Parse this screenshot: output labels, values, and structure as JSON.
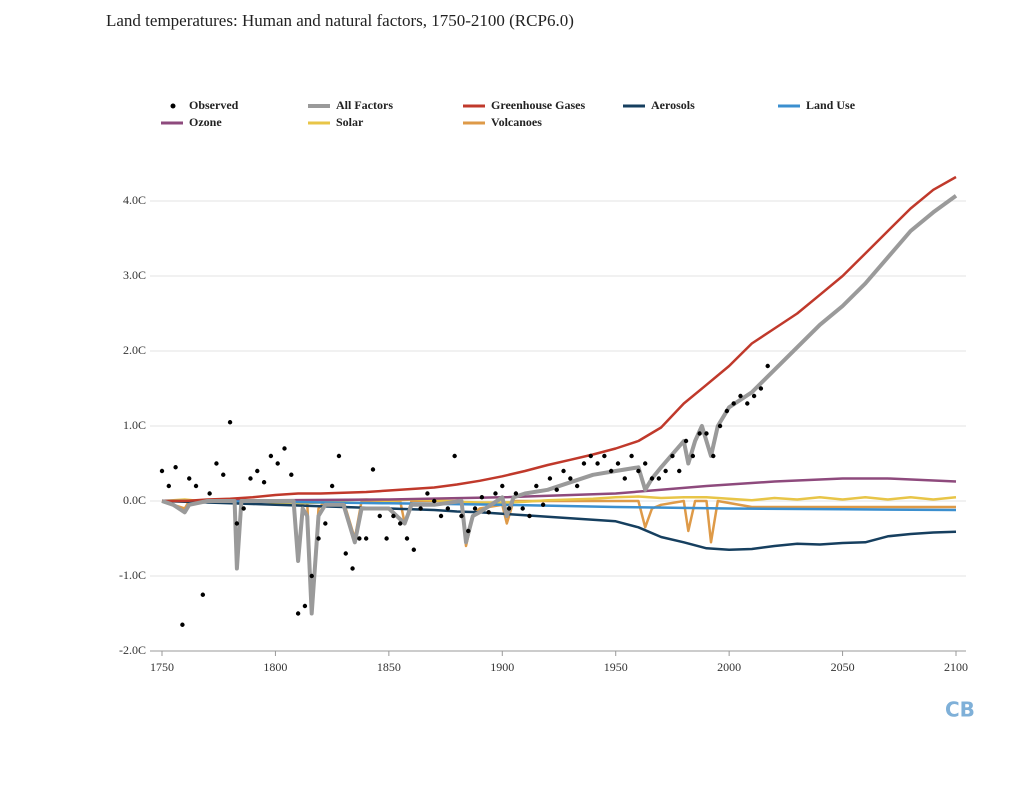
{
  "chart_data": {
    "type": "line",
    "title": "Land temperatures: Human and natural factors, 1750-2100 (RCP6.0)",
    "logo": "CB",
    "xlim": [
      1750,
      2100
    ],
    "xticks": [
      1750,
      1800,
      1850,
      1900,
      1950,
      2000,
      2050,
      2100
    ],
    "ylim": [
      -2,
      4.5
    ],
    "yticks": [
      {
        "value": -2,
        "label": "-2.0C"
      },
      {
        "value": -1,
        "label": "-1.0C"
      },
      {
        "value": 0,
        "label": "0.0C"
      },
      {
        "value": 1,
        "label": "1.0C"
      },
      {
        "value": 2,
        "label": "2.0C"
      },
      {
        "value": 3,
        "label": "3.0C"
      },
      {
        "value": 4,
        "label": "4.0C"
      }
    ],
    "grid": true,
    "series": [
      {
        "name": "Observed",
        "type": "scatter",
        "color": "#000000",
        "x": [
          1750,
          1753,
          1756,
          1759,
          1762,
          1765,
          1768,
          1771,
          1774,
          1777,
          1780,
          1783,
          1786,
          1789,
          1792,
          1795,
          1798,
          1801,
          1804,
          1807,
          1810,
          1813,
          1816,
          1819,
          1822,
          1825,
          1828,
          1831,
          1834,
          1837,
          1840,
          1843,
          1846,
          1849,
          1852,
          1855,
          1858,
          1861,
          1864,
          1867,
          1870,
          1873,
          1876,
          1879,
          1882,
          1885,
          1888,
          1891,
          1894,
          1897,
          1900,
          1903,
          1906,
          1909,
          1912,
          1915,
          1918,
          1921,
          1924,
          1927,
          1930,
          1933,
          1936,
          1939,
          1942,
          1945,
          1948,
          1951,
          1954,
          1957,
          1960,
          1963,
          1966,
          1969,
          1972,
          1975,
          1978,
          1981,
          1984,
          1987,
          1990,
          1993,
          1996,
          1999,
          2002,
          2005,
          2008,
          2011,
          2014,
          2017
        ],
        "values": [
          0.4,
          0.2,
          0.45,
          -1.65,
          0.3,
          0.2,
          -1.25,
          0.1,
          0.5,
          0.35,
          1.05,
          -0.3,
          -0.1,
          0.3,
          0.4,
          0.25,
          0.6,
          0.5,
          0.7,
          0.35,
          -1.5,
          -1.4,
          -1.0,
          -0.5,
          -0.3,
          0.2,
          0.6,
          -0.7,
          -0.9,
          -0.5,
          -0.5,
          0.42,
          -0.2,
          -0.5,
          -0.2,
          -0.3,
          -0.5,
          -0.65,
          -0.1,
          0.1,
          0.0,
          -0.2,
          -0.1,
          0.6,
          -0.2,
          -0.4,
          -0.1,
          0.05,
          -0.15,
          0.1,
          0.2,
          -0.1,
          0.1,
          -0.1,
          -0.2,
          0.2,
          -0.05,
          0.3,
          0.15,
          0.4,
          0.3,
          0.2,
          0.5,
          0.6,
          0.5,
          0.6,
          0.4,
          0.5,
          0.3,
          0.6,
          0.4,
          0.5,
          0.3,
          0.3,
          0.4,
          0.6,
          0.4,
          0.8,
          0.6,
          0.9,
          0.9,
          0.6,
          1.0,
          1.2,
          1.3,
          1.4,
          1.3,
          1.4,
          1.5,
          1.8
        ]
      },
      {
        "name": "All Factors",
        "color": "#9a9a9a",
        "x": [
          1750,
          1755,
          1760,
          1762,
          1770,
          1782,
          1783,
          1785,
          1800,
          1808,
          1810,
          1812,
          1814,
          1816,
          1819,
          1822,
          1830,
          1835,
          1838,
          1850,
          1857,
          1860,
          1870,
          1882,
          1884,
          1887,
          1890,
          1900,
          1902,
          1905,
          1910,
          1920,
          1930,
          1940,
          1950,
          1960,
          1963,
          1966,
          1970,
          1980,
          1982,
          1985,
          1988,
          1992,
          1995,
          2000,
          2010,
          2020,
          2030,
          2040,
          2050,
          2060,
          2070,
          2080,
          2090,
          2100
        ],
        "values": [
          0,
          -0.05,
          -0.15,
          -0.05,
          0,
          0,
          -0.9,
          0,
          0,
          0,
          -0.8,
          -0.1,
          -0.2,
          -1.5,
          -0.2,
          -0.05,
          -0.05,
          -0.55,
          -0.1,
          -0.1,
          -0.3,
          -0.05,
          -0.05,
          0,
          -0.55,
          -0.2,
          -0.15,
          0.05,
          -0.2,
          0.05,
          0.1,
          0.15,
          0.25,
          0.35,
          0.4,
          0.45,
          0.15,
          0.3,
          0.45,
          0.8,
          0.5,
          0.8,
          1.0,
          0.6,
          1.0,
          1.25,
          1.45,
          1.75,
          2.05,
          2.35,
          2.6,
          2.9,
          3.25,
          3.6,
          3.85,
          4.07
        ]
      },
      {
        "name": "Greenhouse Gases",
        "color": "#c0392b",
        "x": [
          1750,
          1760,
          1770,
          1780,
          1790,
          1800,
          1810,
          1820,
          1830,
          1840,
          1850,
          1860,
          1870,
          1880,
          1890,
          1900,
          1910,
          1920,
          1930,
          1940,
          1950,
          1960,
          1970,
          1980,
          1990,
          2000,
          2010,
          2020,
          2030,
          2040,
          2050,
          2060,
          2070,
          2080,
          2090,
          2100
        ],
        "values": [
          0,
          0,
          0.02,
          0.03,
          0.05,
          0.08,
          0.1,
          0.1,
          0.11,
          0.12,
          0.14,
          0.16,
          0.18,
          0.22,
          0.27,
          0.33,
          0.4,
          0.48,
          0.55,
          0.62,
          0.7,
          0.8,
          0.98,
          1.3,
          1.55,
          1.8,
          2.1,
          2.3,
          2.5,
          2.75,
          3.0,
          3.3,
          3.6,
          3.9,
          4.15,
          4.32
        ]
      },
      {
        "name": "Aerosols",
        "color": "#163f5f",
        "x": [
          1750,
          1760,
          1770,
          1780,
          1790,
          1800,
          1810,
          1820,
          1830,
          1840,
          1850,
          1860,
          1870,
          1880,
          1890,
          1900,
          1910,
          1920,
          1930,
          1940,
          1950,
          1960,
          1970,
          1980,
          1990,
          2000,
          2010,
          2020,
          2030,
          2040,
          2050,
          2060,
          2070,
          2080,
          2090,
          2100
        ],
        "values": [
          0,
          -0.01,
          -0.02,
          -0.03,
          -0.04,
          -0.05,
          -0.06,
          -0.07,
          -0.08,
          -0.09,
          -0.1,
          -0.11,
          -0.12,
          -0.14,
          -0.15,
          -0.17,
          -0.19,
          -0.21,
          -0.23,
          -0.25,
          -0.27,
          -0.35,
          -0.48,
          -0.55,
          -0.63,
          -0.65,
          -0.64,
          -0.6,
          -0.57,
          -0.58,
          -0.56,
          -0.55,
          -0.47,
          -0.44,
          -0.42,
          -0.41
        ]
      },
      {
        "name": "Land Use",
        "color": "#3b8fcf",
        "x": [
          1750,
          1800,
          1850,
          1900,
          1950,
          2000,
          2050,
          2100
        ],
        "values": [
          0,
          -0.01,
          -0.03,
          -0.05,
          -0.08,
          -0.1,
          -0.11,
          -0.12
        ]
      },
      {
        "name": "Ozone",
        "color": "#8e4a7d",
        "x": [
          1750,
          1800,
          1850,
          1900,
          1950,
          1970,
          1990,
          2000,
          2020,
          2050,
          2070,
          2100
        ],
        "values": [
          0,
          0.01,
          0.02,
          0.05,
          0.1,
          0.15,
          0.2,
          0.22,
          0.26,
          0.3,
          0.3,
          0.26
        ]
      },
      {
        "name": "Solar",
        "color": "#e8c547",
        "x": [
          1750,
          1760,
          1770,
          1780,
          1790,
          1800,
          1810,
          1820,
          1830,
          1840,
          1850,
          1860,
          1870,
          1880,
          1890,
          1900,
          1910,
          1920,
          1930,
          1940,
          1950,
          1960,
          1970,
          1980,
          1990,
          2000,
          2010,
          2020,
          2030,
          2040,
          2050,
          2060,
          2070,
          2080,
          2090,
          2100
        ],
        "values": [
          0,
          0.02,
          -0.01,
          0.03,
          0.0,
          -0.02,
          -0.03,
          -0.02,
          0.01,
          0.02,
          0.0,
          0.02,
          0.01,
          -0.01,
          -0.02,
          -0.02,
          -0.01,
          0.01,
          0.02,
          0.03,
          0.05,
          0.06,
          0.04,
          0.05,
          0.05,
          0.03,
          0.01,
          0.04,
          0.02,
          0.05,
          0.02,
          0.05,
          0.02,
          0.05,
          0.02,
          0.05
        ]
      },
      {
        "name": "Volcanoes",
        "color": "#de9a48",
        "x": [
          1750,
          1755,
          1760,
          1762,
          1782,
          1783,
          1785,
          1808,
          1810,
          1812,
          1814,
          1816,
          1819,
          1822,
          1830,
          1835,
          1838,
          1855,
          1857,
          1860,
          1882,
          1884,
          1887,
          1890,
          1900,
          1902,
          1905,
          1960,
          1963,
          1966,
          1970,
          1980,
          1982,
          1985,
          1990,
          1992,
          1995,
          2010,
          2100
        ],
        "values": [
          0,
          -0.05,
          -0.1,
          0,
          0,
          -0.9,
          0,
          0,
          -0.8,
          0,
          0,
          -1.45,
          -0.1,
          0,
          0,
          -0.5,
          0,
          0,
          -0.3,
          0,
          0,
          -0.6,
          -0.2,
          -0.1,
          -0.05,
          -0.3,
          0,
          0,
          -0.35,
          -0.1,
          -0.05,
          0,
          -0.4,
          0,
          0,
          -0.55,
          0,
          -0.08,
          -0.08
        ]
      }
    ]
  }
}
